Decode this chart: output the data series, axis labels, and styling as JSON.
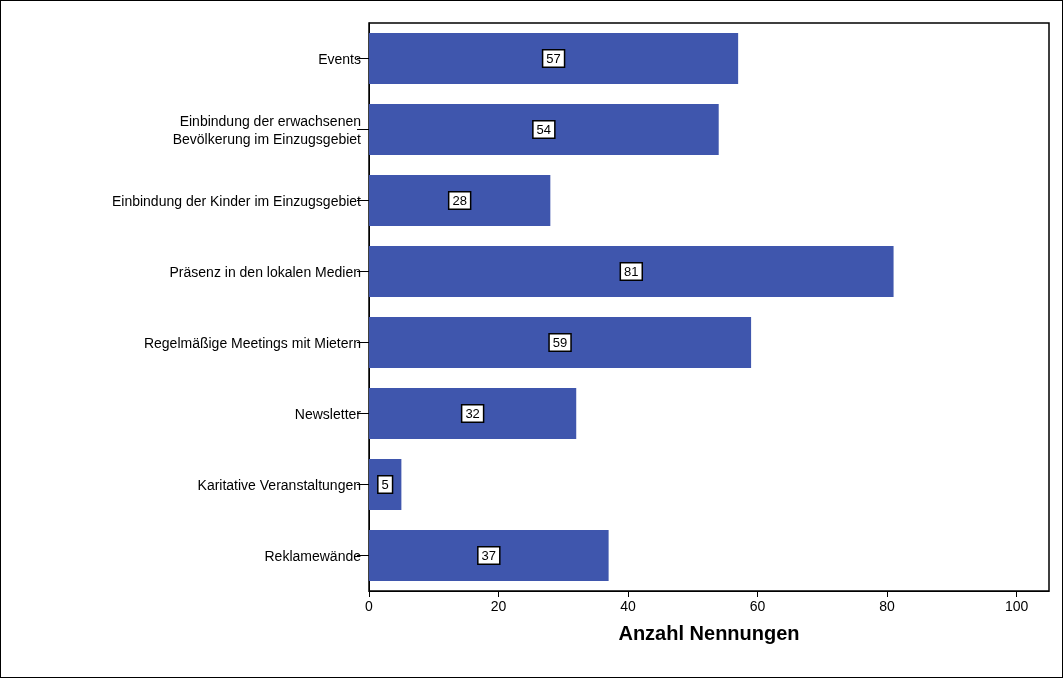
{
  "chart_data": {
    "type": "bar",
    "orientation": "horizontal",
    "xlabel": "Anzahl Nennungen",
    "categories": [
      "Events",
      "Einbindung der erwachsenen\nBevölkerung im Einzugsgebiet",
      "Einbindung der Kinder im Einzugsgebiet",
      "Präsenz in den lokalen Medien",
      "Regelmäßige Meetings mit Mietern",
      "Newsletter",
      "Karitative Veranstaltungen",
      "Reklamewände"
    ],
    "values": [
      57,
      54,
      28,
      81,
      59,
      32,
      5,
      37
    ],
    "color": "#3f56ad",
    "xlim": [
      0,
      105
    ],
    "xticks": [
      0,
      20,
      40,
      60,
      80,
      100
    ],
    "data_labels": true,
    "grid": false
  }
}
